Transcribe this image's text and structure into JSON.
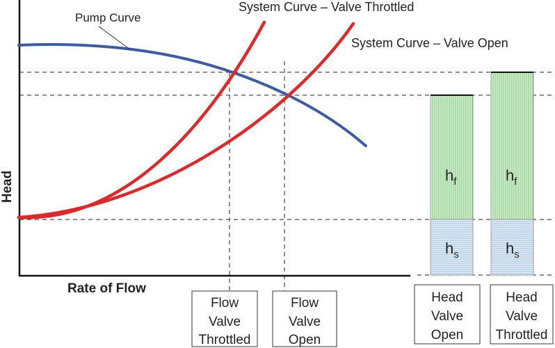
{
  "labels": {
    "pump_curve": "Pump Curve",
    "system_throttled": "System Curve – Valve Throttled",
    "system_open": "System Curve – Valve Open",
    "y_axis": "Head",
    "x_axis": "Rate of Flow"
  },
  "boxes": {
    "flow_throttled": [
      "Flow",
      "Valve",
      "Throttled"
    ],
    "flow_open": [
      "Flow",
      "Valve",
      "Open"
    ],
    "head_open": [
      "Head",
      "Valve",
      "Open"
    ],
    "head_throttled": [
      "Head",
      "Valve",
      "Throttled"
    ]
  },
  "bars": {
    "friction_label": "h",
    "friction_sub": "f",
    "static_label": "h",
    "static_sub": "s"
  },
  "colors": {
    "pump_curve": "#3a5ba8",
    "system_curve": "#e02828",
    "friction_fill": "#d8f0d4",
    "friction_line": "#7cc47a",
    "static_fill": "#e6eef8",
    "static_line": "#9bbbe0",
    "axis": "#111111"
  }
}
